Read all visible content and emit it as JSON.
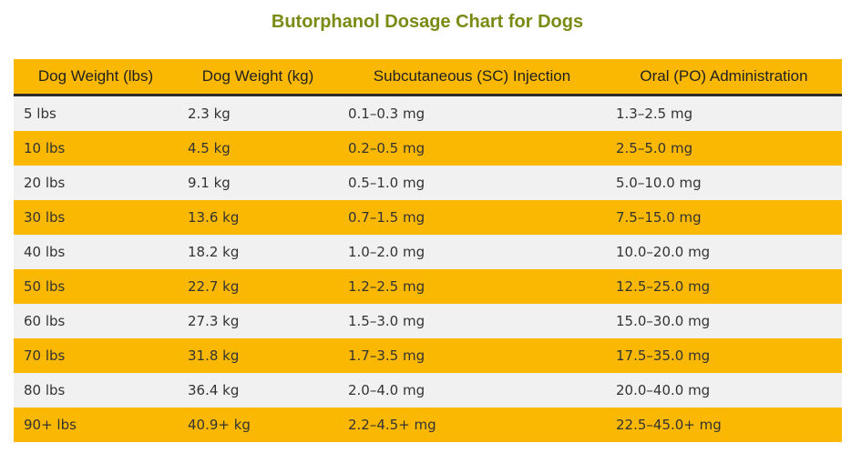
{
  "title": "Butorphanol Dosage Chart for Dogs",
  "table": {
    "headers": [
      "Dog Weight (lbs)",
      "Dog Weight (kg)",
      "Subcutaneous (SC) Injection",
      "Oral (PO) Administration"
    ],
    "rows": [
      [
        "5 lbs",
        "2.3 kg",
        "0.1–0.3 mg",
        "1.3–2.5 mg"
      ],
      [
        "10 lbs",
        "4.5 kg",
        "0.2–0.5 mg",
        "2.5–5.0 mg"
      ],
      [
        "20 lbs",
        "9.1 kg",
        "0.5–1.0 mg",
        "5.0–10.0 mg"
      ],
      [
        "30 lbs",
        "13.6 kg",
        "0.7–1.5 mg",
        "7.5–15.0 mg"
      ],
      [
        "40 lbs",
        "18.2 kg",
        "1.0–2.0 mg",
        "10.0–20.0 mg"
      ],
      [
        "50 lbs",
        "22.7 kg",
        "1.2–2.5 mg",
        "12.5–25.0 mg"
      ],
      [
        "60 lbs",
        "27.3 kg",
        "1.5–3.0 mg",
        "15.0–30.0 mg"
      ],
      [
        "70 lbs",
        "31.8 kg",
        "1.7–3.5 mg",
        "17.5–35.0 mg"
      ],
      [
        "80 lbs",
        "36.4 kg",
        "2.0–4.0 mg",
        "20.0–40.0 mg"
      ],
      [
        "90+ lbs",
        "40.9+ kg",
        "2.2–4.5+ mg",
        "22.5–45.0+ mg"
      ]
    ]
  },
  "colors": {
    "accent": "#fbb802",
    "title": "#7a8a12",
    "row_alt": "#f1f1f1",
    "header_border": "#2b2b2b"
  }
}
